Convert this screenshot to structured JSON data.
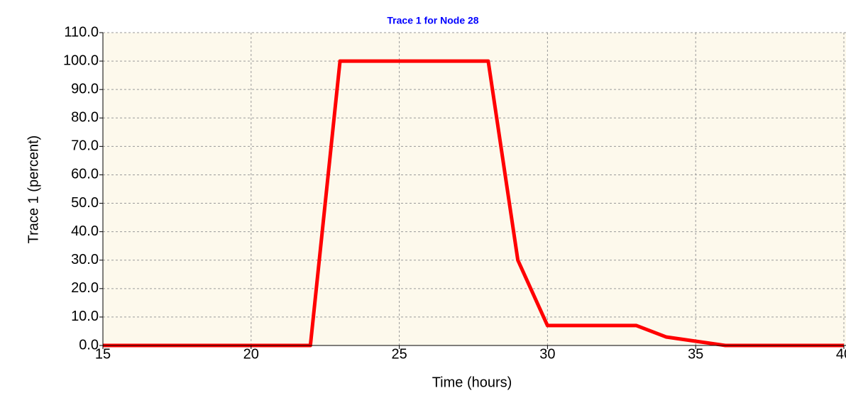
{
  "chart_data": {
    "type": "line",
    "title": "Trace 1 for Node 28",
    "x_label": "Time (hours)",
    "y_label": "Trace 1 (percent)",
    "xlim": [
      15,
      40
    ],
    "xticks": [
      15,
      20,
      25,
      30,
      35,
      40
    ],
    "ylim": [
      0,
      110
    ],
    "yticks": [
      {
        "value": 0,
        "label": "0.0"
      },
      {
        "value": 10,
        "label": "10.0"
      },
      {
        "value": 20,
        "label": "20.0"
      },
      {
        "value": 30,
        "label": "30.0"
      },
      {
        "value": 40,
        "label": "40.0"
      },
      {
        "value": 50,
        "label": "50.0"
      },
      {
        "value": 60,
        "label": "60.0"
      },
      {
        "value": 70,
        "label": "70.0"
      },
      {
        "value": 80,
        "label": "80.0"
      },
      {
        "value": 90,
        "label": "90.0"
      },
      {
        "value": 100,
        "label": "100.0"
      },
      {
        "value": 110,
        "label": "110.0"
      }
    ],
    "grid": true,
    "x": [
      15,
      22,
      23,
      28,
      29,
      30,
      33,
      34,
      35,
      36,
      40
    ],
    "series": [
      {
        "name": "Trace 1",
        "color": "#ff0000",
        "values": [
          0,
          0,
          100,
          100,
          30,
          7,
          7,
          3,
          1.5,
          0,
          0
        ]
      }
    ]
  }
}
